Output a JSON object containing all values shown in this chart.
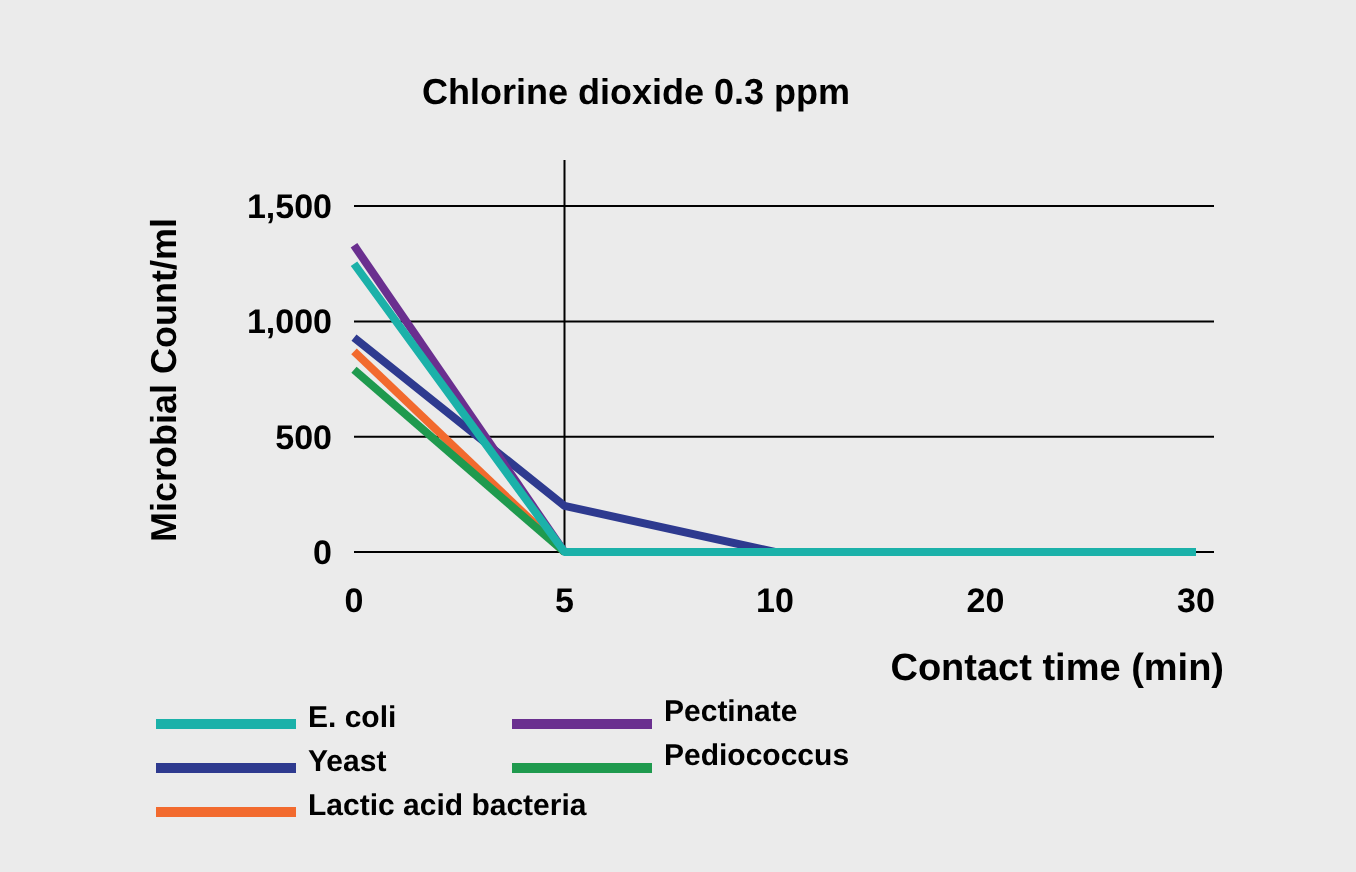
{
  "chart_data": {
    "type": "line",
    "title": "Chlorine dioxide 0.3 ppm",
    "xlabel": "Contact time (min)",
    "ylabel": "Microbial Count/ml",
    "categories": [
      "0",
      "5",
      "10",
      "20",
      "30"
    ],
    "series": [
      {
        "name": "E. coli",
        "color": "#1bb1a9",
        "values": [
          1250,
          0,
          0,
          0,
          0
        ]
      },
      {
        "name": "Yeast",
        "color": "#2e3a8f",
        "values": [
          930,
          200,
          0,
          null,
          null
        ]
      },
      {
        "name": "Lactic acid bacteria",
        "color": "#f26a2e",
        "values": [
          870,
          0,
          null,
          null,
          null
        ]
      },
      {
        "name": "Pectinate",
        "color": "#6a2f8f",
        "values": [
          1330,
          0,
          null,
          null,
          null
        ]
      },
      {
        "name": "Pediococcus",
        "color": "#1f9a4e",
        "values": [
          790,
          0,
          null,
          null,
          null
        ]
      }
    ],
    "ylim": [
      0,
      1700
    ],
    "yticks": [
      0,
      {
        "value": 500,
        "label": "500"
      },
      {
        "value": 1000,
        "label": "1,000"
      },
      {
        "value": 1500,
        "label": "1,500"
      }
    ],
    "grid": "y",
    "legend": "bottom",
    "marker": "none",
    "line_style": "solid",
    "ref_lines": [
      {
        "axis": "x",
        "value": "5",
        "color": "#000000"
      }
    ]
  }
}
